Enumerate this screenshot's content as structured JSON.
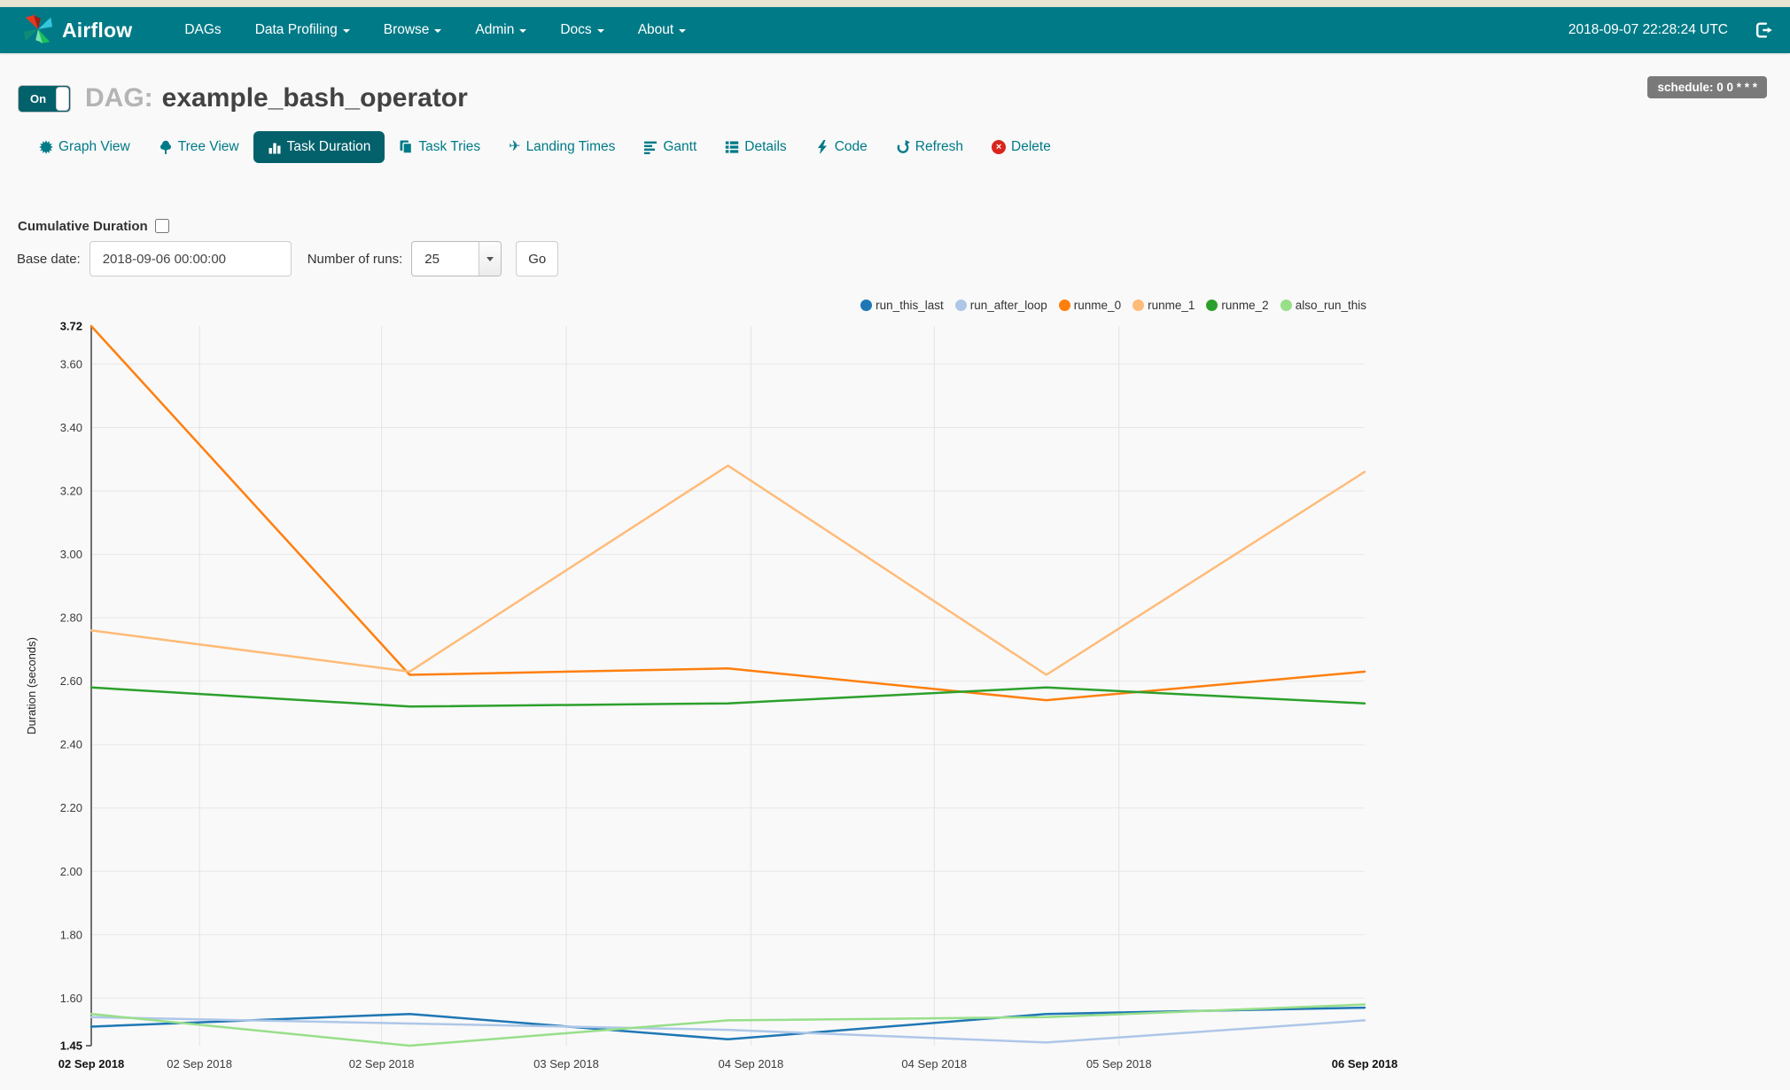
{
  "navbar": {
    "brand": "Airflow",
    "menu": [
      {
        "label": "DAGs",
        "dropdown": false
      },
      {
        "label": "Data Profiling",
        "dropdown": true
      },
      {
        "label": "Browse",
        "dropdown": true
      },
      {
        "label": "Admin",
        "dropdown": true
      },
      {
        "label": "Docs",
        "dropdown": true
      },
      {
        "label": "About",
        "dropdown": true
      }
    ],
    "clock": "2018-09-07 22:28:24 UTC"
  },
  "header": {
    "toggle_label": "On",
    "dag_prefix": "DAG:",
    "dag_name": "example_bash_operator",
    "schedule_badge": "schedule: 0 0 * * *"
  },
  "tabs": [
    {
      "label": "Graph View",
      "icon": "burst-icon",
      "active": false
    },
    {
      "label": "Tree View",
      "icon": "tree-icon",
      "active": false
    },
    {
      "label": "Task Duration",
      "icon": "bar-chart-icon",
      "active": true
    },
    {
      "label": "Task Tries",
      "icon": "duplicate-icon",
      "active": false
    },
    {
      "label": "Landing Times",
      "icon": "plane-icon",
      "active": false
    },
    {
      "label": "Gantt",
      "icon": "align-left-icon",
      "active": false
    },
    {
      "label": "Details",
      "icon": "th-list-icon",
      "active": false
    },
    {
      "label": "Code",
      "icon": "flash-icon",
      "active": false
    },
    {
      "label": "Refresh",
      "icon": "refresh-icon",
      "active": false
    },
    {
      "label": "Delete",
      "icon": "delete-circle-icon",
      "active": false
    }
  ],
  "controls": {
    "cumulative_label": "Cumulative Duration",
    "cumulative_checked": false,
    "base_date_label": "Base date:",
    "base_date_value": "2018-09-06 00:00:00",
    "num_runs_label": "Number of runs:",
    "num_runs_value": "25",
    "go_label": "Go"
  },
  "chart_data": {
    "type": "line",
    "title": "",
    "xlabel": "",
    "ylabel": "Duration (seconds)",
    "ylim": [
      1.45,
      3.72
    ],
    "grid": true,
    "legend_position": "top-right",
    "y_ticks": [
      1.6,
      1.8,
      2.0,
      2.2,
      2.4,
      2.6,
      2.8,
      3.0,
      3.2,
      3.4,
      3.6
    ],
    "y_minmax_bold": [
      "1.45",
      "3.72"
    ],
    "x_ticks": [
      {
        "label": "02 Sep 2018",
        "pos": 0.0,
        "bold": true,
        "grid": false
      },
      {
        "label": "02 Sep 2018",
        "pos": 0.085,
        "bold": false,
        "grid": true
      },
      {
        "label": "02 Sep 2018",
        "pos": 0.228,
        "bold": false,
        "grid": true
      },
      {
        "label": "03 Sep 2018",
        "pos": 0.373,
        "bold": false,
        "grid": true
      },
      {
        "label": "04 Sep 2018",
        "pos": 0.518,
        "bold": false,
        "grid": true
      },
      {
        "label": "04 Sep 2018",
        "pos": 0.662,
        "bold": false,
        "grid": true
      },
      {
        "label": "05 Sep 2018",
        "pos": 0.807,
        "bold": false,
        "grid": true
      },
      {
        "label": "06 Sep 2018",
        "pos": 1.0,
        "bold": true,
        "grid": false
      }
    ],
    "x_points": [
      0,
      0.25,
      0.5,
      0.75,
      1.0
    ],
    "series": [
      {
        "name": "run_this_last",
        "color": "#1f77b4",
        "values": [
          1.51,
          1.55,
          1.47,
          1.55,
          1.57
        ]
      },
      {
        "name": "run_after_loop",
        "color": "#aec7e8",
        "values": [
          1.54,
          1.52,
          1.5,
          1.46,
          1.53
        ]
      },
      {
        "name": "runme_0",
        "color": "#ff7f0e",
        "values": [
          3.72,
          2.62,
          2.64,
          2.54,
          2.63
        ]
      },
      {
        "name": "runme_1",
        "color": "#ffbb78",
        "values": [
          2.76,
          2.63,
          3.28,
          2.62,
          3.26
        ]
      },
      {
        "name": "runme_2",
        "color": "#2ca02c",
        "values": [
          2.58,
          2.52,
          2.53,
          2.58,
          2.53
        ]
      },
      {
        "name": "also_run_this",
        "color": "#98df8a",
        "values": [
          1.55,
          1.45,
          1.53,
          1.54,
          1.58
        ]
      }
    ]
  },
  "colors": {
    "navbar": "#007A87",
    "accent": "#007A87",
    "active_tab_bg": "#02616b",
    "badge_bg": "#7a7a7a",
    "delete_red": "#d9251d"
  }
}
